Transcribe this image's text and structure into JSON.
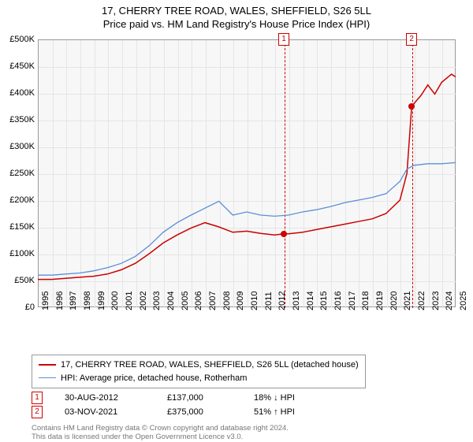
{
  "title": {
    "line1": "17, CHERRY TREE ROAD, WALES, SHEFFIELD, S26 5LL",
    "line2": "Price paid vs. HM Land Registry's House Price Index (HPI)"
  },
  "chart": {
    "type": "line",
    "background_color": "#f7f7f7",
    "grid_color": "#e5e5e5",
    "border_color": "#999999",
    "xlim": [
      1995,
      2025
    ],
    "ylim": [
      0,
      500000
    ],
    "ytick_step": 50000,
    "yticks": [
      "£0",
      "£50K",
      "£100K",
      "£150K",
      "£200K",
      "£250K",
      "£300K",
      "£350K",
      "£400K",
      "£450K",
      "£500K"
    ],
    "xticks": [
      1995,
      1996,
      1997,
      1998,
      1999,
      2000,
      2001,
      2002,
      2003,
      2004,
      2005,
      2006,
      2007,
      2008,
      2009,
      2010,
      2011,
      2012,
      2013,
      2014,
      2015,
      2016,
      2017,
      2018,
      2019,
      2020,
      2021,
      2022,
      2023,
      2024,
      2025
    ],
    "series": [
      {
        "name": "price_paid",
        "label": "17, CHERRY TREE ROAD, WALES, SHEFFIELD, S26 5LL (detached house)",
        "color": "#cc0000",
        "line_width": 1.5,
        "points": [
          [
            1995,
            52000
          ],
          [
            1996,
            52000
          ],
          [
            1997,
            54000
          ],
          [
            1998,
            56000
          ],
          [
            1999,
            58000
          ],
          [
            2000,
            62000
          ],
          [
            2001,
            70000
          ],
          [
            2002,
            82000
          ],
          [
            2003,
            100000
          ],
          [
            2004,
            120000
          ],
          [
            2005,
            135000
          ],
          [
            2006,
            148000
          ],
          [
            2007,
            158000
          ],
          [
            2008,
            150000
          ],
          [
            2009,
            140000
          ],
          [
            2010,
            142000
          ],
          [
            2011,
            138000
          ],
          [
            2012,
            135000
          ],
          [
            2012.66,
            137000
          ],
          [
            2013,
            137000
          ],
          [
            2014,
            140000
          ],
          [
            2015,
            145000
          ],
          [
            2016,
            150000
          ],
          [
            2017,
            155000
          ],
          [
            2018,
            160000
          ],
          [
            2019,
            165000
          ],
          [
            2020,
            175000
          ],
          [
            2021,
            200000
          ],
          [
            2021.5,
            250000
          ],
          [
            2021.84,
            375000
          ],
          [
            2022,
            380000
          ],
          [
            2022.5,
            395000
          ],
          [
            2023,
            415000
          ],
          [
            2023.5,
            398000
          ],
          [
            2024,
            420000
          ],
          [
            2024.7,
            435000
          ],
          [
            2025,
            430000
          ]
        ]
      },
      {
        "name": "hpi",
        "label": "HPI: Average price, detached house, Rotherham",
        "color": "#5b8fd6",
        "line_width": 1.3,
        "points": [
          [
            1995,
            60000
          ],
          [
            1996,
            60000
          ],
          [
            1997,
            62000
          ],
          [
            1998,
            64000
          ],
          [
            1999,
            68000
          ],
          [
            2000,
            74000
          ],
          [
            2001,
            82000
          ],
          [
            2002,
            95000
          ],
          [
            2003,
            115000
          ],
          [
            2004,
            140000
          ],
          [
            2005,
            158000
          ],
          [
            2006,
            172000
          ],
          [
            2007,
            185000
          ],
          [
            2008,
            198000
          ],
          [
            2009,
            172000
          ],
          [
            2010,
            178000
          ],
          [
            2011,
            172000
          ],
          [
            2012,
            170000
          ],
          [
            2013,
            172000
          ],
          [
            2014,
            178000
          ],
          [
            2015,
            182000
          ],
          [
            2016,
            188000
          ],
          [
            2017,
            195000
          ],
          [
            2018,
            200000
          ],
          [
            2019,
            205000
          ],
          [
            2020,
            212000
          ],
          [
            2021,
            235000
          ],
          [
            2021.5,
            258000
          ],
          [
            2022,
            265000
          ],
          [
            2023,
            268000
          ],
          [
            2024,
            268000
          ],
          [
            2025,
            270000
          ]
        ]
      }
    ],
    "markers": [
      {
        "idx": "1",
        "x": 2012.66,
        "y": 137000,
        "color": "#cc0000"
      },
      {
        "idx": "2",
        "x": 2021.84,
        "y": 375000,
        "color": "#cc0000"
      }
    ]
  },
  "legend": {
    "border_color": "#999999",
    "rows": [
      {
        "color": "#cc0000",
        "width": 2,
        "label": "17, CHERRY TREE ROAD, WALES, SHEFFIELD, S26 5LL (detached house)"
      },
      {
        "color": "#5b8fd6",
        "width": 1.5,
        "label": "HPI: Average price, detached house, Rotherham"
      }
    ]
  },
  "events": [
    {
      "idx": "1",
      "color": "#cc0000",
      "date": "30-AUG-2012",
      "price": "£137,000",
      "delta": "18% ↓ HPI"
    },
    {
      "idx": "2",
      "color": "#cc0000",
      "date": "03-NOV-2021",
      "price": "£375,000",
      "delta": "51% ↑ HPI"
    }
  ],
  "footer": {
    "line1": "Contains HM Land Registry data © Crown copyright and database right 2024.",
    "line2": "This data is licensed under the Open Government Licence v3.0."
  }
}
